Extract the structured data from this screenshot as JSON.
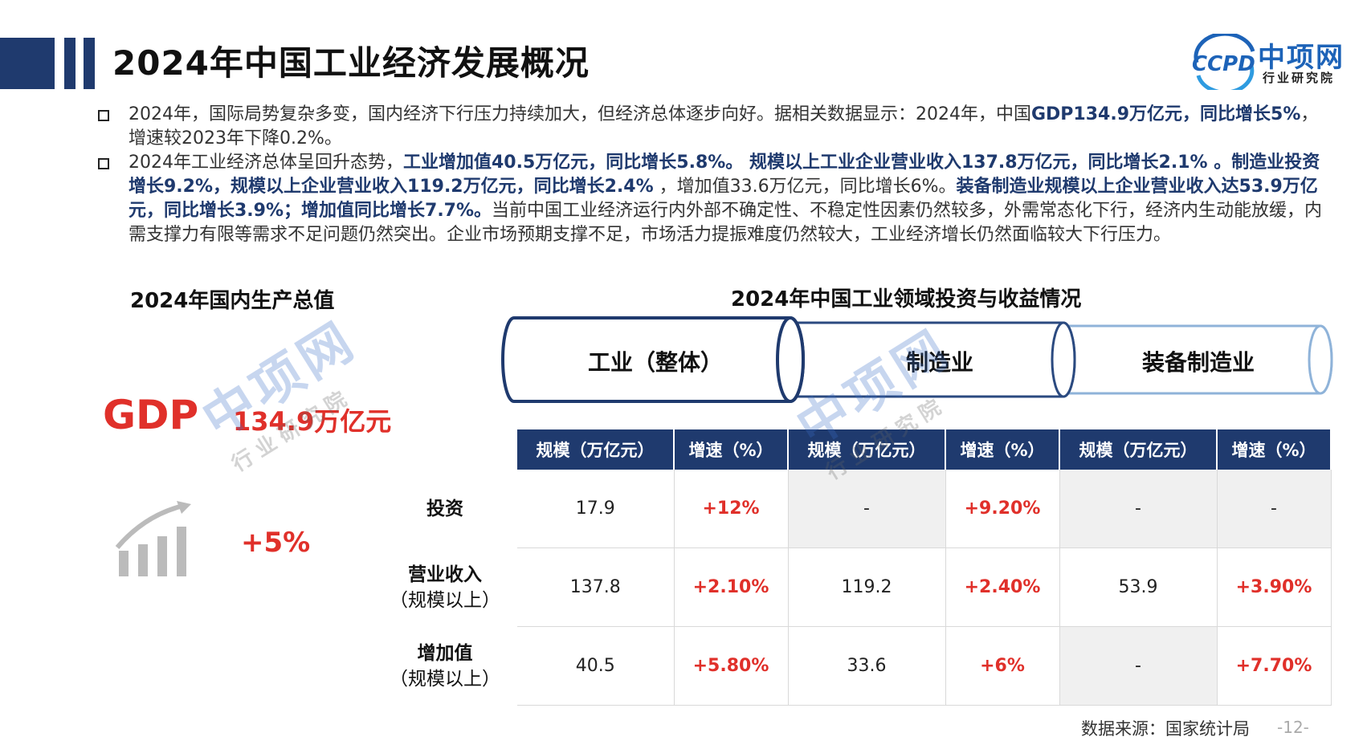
{
  "header": {
    "title": "2024年中国工业经济发展概况",
    "logo_mark": "CCPD",
    "logo_cn": "中项网",
    "logo_sub": "行业研究院"
  },
  "paragraphs": {
    "p1": [
      {
        "t": "2024年，国际局势复杂多变，国内经济下行压力持续加大，但经济总体逐步向好。据相关数据显示：2024年，中国",
        "hl": false
      },
      {
        "t": "GDP134.9万亿元，同比增长5%",
        "hl": true
      },
      {
        "t": "，增速较2023年下降0.2%。",
        "hl": false
      }
    ],
    "p2": [
      {
        "t": "2024年工业经济总体呈回升态势，",
        "hl": false
      },
      {
        "t": "工业增加值40.5万亿元，同比增长5.8%。 规模以上工业企业营业收入137.8万亿元，同比增长2.1% 。制造业投资增长9.2%，规模以上企业营业收入119.2万亿元，同比增长2.4%",
        "hl": true
      },
      {
        "t": " ，增加值33.6万亿元，同比增长6%。",
        "hl": false
      },
      {
        "t": "装备制造业规模以上企业营业收入达53.9万亿元，同比增长3.9%；增加值同比增长7.7%。",
        "hl": true
      },
      {
        "t": "当前中国工业经济运行内外部不确定性、不稳定性因素仍然较多，外需常态化下行，经济内生动能放缓，内需支撑力有限等需求不足问题仍然突出。企业市场预期支撑不足，市场活力提振难度仍然较大，工业经济增长仍然面临较大下行压力。",
        "hl": false
      }
    ]
  },
  "gdp_section": {
    "title": "2024年国内生产总值",
    "label": "GDP",
    "value": "134.9万亿元",
    "growth": "+5%"
  },
  "invest_section": {
    "title": "2024年中国工业领域投资与收益情况",
    "categories": [
      "工业（整体）",
      "制造业",
      "装备制造业"
    ]
  },
  "table": {
    "headers": [
      "规模（万亿元）",
      "增速（%）",
      "规模（万亿元）",
      "增速（%）",
      "规模（万亿元）",
      "增速（%）"
    ],
    "rows": [
      {
        "label": "投资",
        "sub": "",
        "cells": [
          "17.9",
          "+12%",
          "-",
          "+9.20%",
          "-",
          "-"
        ]
      },
      {
        "label": "营业收入",
        "sub": "（规模以上）",
        "cells": [
          "137.8",
          "+2.10%",
          "119.2",
          "+2.40%",
          "53.9",
          "+3.90%"
        ]
      },
      {
        "label": "增加值",
        "sub": "（规模以上）",
        "cells": [
          "40.5",
          "+5.80%",
          "33.6",
          "+6%",
          "-",
          "+7.70%"
        ]
      }
    ]
  },
  "footer": {
    "source": "数据来源：国家统计局",
    "page": "-12-"
  },
  "watermark": {
    "cn": "中项网",
    "sub": "行业研究院"
  },
  "colors": {
    "navy": "#1f3a6e",
    "red": "#e0302a",
    "logo_blue": "#1d63b8"
  }
}
